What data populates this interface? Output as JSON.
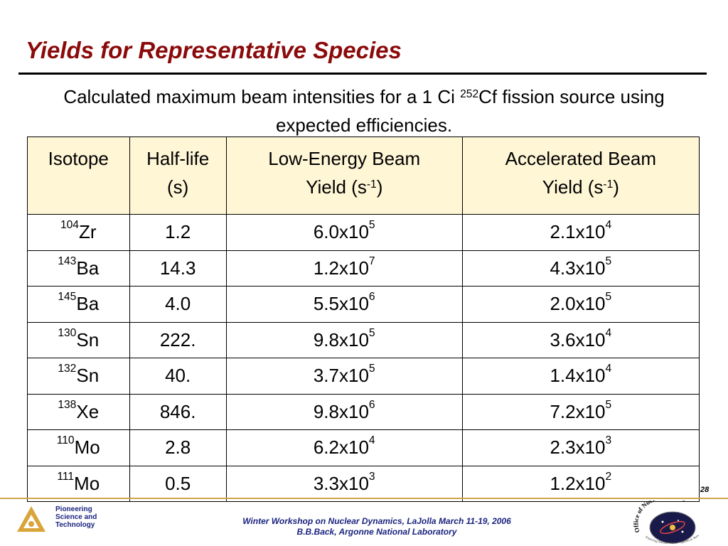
{
  "slide": {
    "title": "Yields for Representative Species",
    "subtitle_part1": "Calculated maximum beam intensities for a  1 Ci ",
    "subtitle_sup": "252",
    "subtitle_part2": "Cf fission source using expected efficiencies.",
    "page_number": "28"
  },
  "table": {
    "headers": {
      "isotope": "Isotope",
      "halflife_line1": "Half-life",
      "halflife_line2": "(s)",
      "low_line1": "Low-Energy Beam",
      "low_line2_pre": "Yield (s",
      "low_line2_sup": "-1",
      "low_line2_post": ")",
      "acc_line1": "Accelerated Beam",
      "acc_line2_pre": "Yield (s",
      "acc_line2_sup": "-1",
      "acc_line2_post": ")"
    },
    "rows": [
      {
        "mass": "104",
        "element": "Zr",
        "halflife": "1.2",
        "low_mant": "6.0x10",
        "low_exp": "5",
        "acc_mant": "2.1x10",
        "acc_exp": "4"
      },
      {
        "mass": "143",
        "element": "Ba",
        "halflife": "14.3",
        "low_mant": "1.2x10",
        "low_exp": "7",
        "acc_mant": "4.3x10",
        "acc_exp": "5"
      },
      {
        "mass": "145",
        "element": "Ba",
        "halflife": "4.0",
        "low_mant": "5.5x10",
        "low_exp": "6",
        "acc_mant": "2.0x10",
        "acc_exp": "5"
      },
      {
        "mass": "130",
        "element": "Sn",
        "halflife": "222.",
        "low_mant": "9.8x10",
        "low_exp": "5",
        "acc_mant": "3.6x10",
        "acc_exp": "4"
      },
      {
        "mass": "132",
        "element": "Sn",
        "halflife": "40.",
        "low_mant": "3.7x10",
        "low_exp": "5",
        "acc_mant": "1.4x10",
        "acc_exp": "4"
      },
      {
        "mass": "138",
        "element": "Xe",
        "halflife": "846.",
        "low_mant": "9.8x10",
        "low_exp": "6",
        "acc_mant": "7.2x10",
        "acc_exp": "5"
      },
      {
        "mass": "110",
        "element": "Mo",
        "halflife": "2.8",
        "low_mant": "6.2x10",
        "low_exp": "4",
        "acc_mant": "2.3x10",
        "acc_exp": "3"
      },
      {
        "mass": "111",
        "element": "Mo",
        "halflife": "0.5",
        "low_mant": "3.3x10",
        "low_exp": "3",
        "acc_mant": "1.2x10",
        "acc_exp": "2"
      }
    ]
  },
  "footer": {
    "logo_line1": "Pioneering",
    "logo_line2": "Science and",
    "logo_line3": "Technology",
    "center_line1": "Winter Workshop on Nuclear Dynamics, LaJolla  March 11-19, 2006",
    "center_line2": "B.B.Back, Argonne National Laboratory",
    "seal_text_top": "Office of Nuclear Physics",
    "seal_text_bottom": "Exploring Nuclear Matter - Quarks to Stars"
  },
  "colors": {
    "title": "#8b0a0a",
    "header_fill": "#fff6d6",
    "footer_text": "#1a237e",
    "footer_rule": "#cfa64a"
  }
}
